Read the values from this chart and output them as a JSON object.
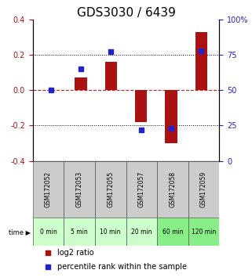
{
  "title": "GDS3030 / 6439",
  "samples": [
    "GSM172052",
    "GSM172053",
    "GSM172055",
    "GSM172057",
    "GSM172058",
    "GSM172059"
  ],
  "time_labels": [
    "0 min",
    "5 min",
    "10 min",
    "20 min",
    "60 min",
    "120 min"
  ],
  "log2_ratios": [
    0.0,
    0.07,
    0.16,
    -0.18,
    -0.3,
    0.33
  ],
  "percentile_ranks": [
    50,
    65,
    77,
    22,
    23,
    78
  ],
  "ylim_left": [
    -0.4,
    0.4
  ],
  "ylim_right": [
    0,
    100
  ],
  "yticks_left": [
    -0.4,
    -0.2,
    0.0,
    0.2,
    0.4
  ],
  "yticks_right": [
    0,
    25,
    50,
    75,
    100
  ],
  "ytick_labels_right": [
    "0",
    "25",
    "50",
    "75",
    "100%"
  ],
  "bar_color": "#aa1111",
  "marker_color": "#2222cc",
  "zero_line_color": "#cc2222",
  "grid_color": "#000000",
  "bg_color": "#ffffff",
  "plot_bg_color": "#ffffff",
  "sample_bg_color": "#cccccc",
  "time_bg_color_light": "#ccffcc",
  "time_bg_color_dark": "#88ee88",
  "bar_width": 0.4,
  "title_fontsize": 11,
  "tick_fontsize": 7,
  "label_fontsize": 7,
  "legend_fontsize": 7
}
